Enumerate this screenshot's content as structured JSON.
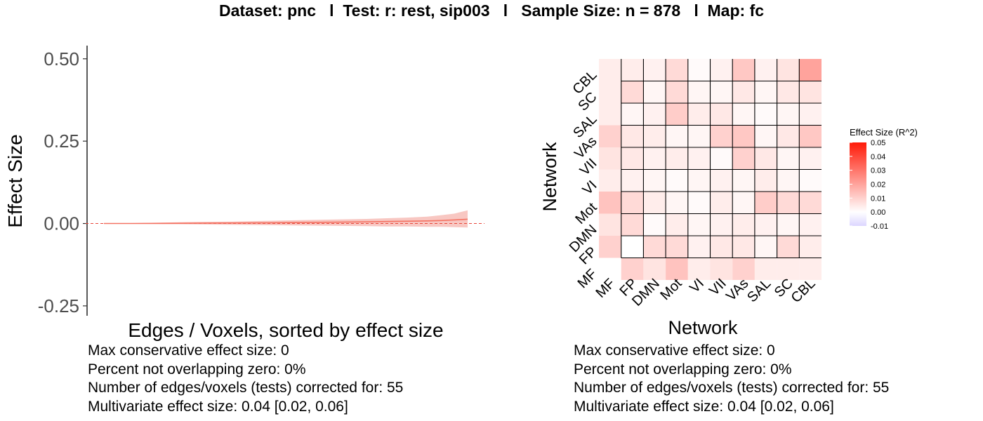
{
  "title": "Dataset: pnc   l  Test: r: rest, sip003   l   Sample Size: n = 878   l  Map: fc",
  "chart_data": [
    {
      "type": "area",
      "xlabel": "Edges / Voxels, sorted by effect size",
      "ylabel": "Effect Size",
      "ylim": [
        -0.28,
        0.54
      ],
      "yticks": [
        0.5,
        0.25,
        0.0,
        -0.25
      ],
      "ytick_labels": [
        "0.50",
        "0.25",
        "0.00",
        "-0.25"
      ],
      "x": [
        1,
        5,
        10,
        15,
        20,
        25,
        30,
        35,
        40,
        43,
        46,
        49,
        51,
        53,
        55
      ],
      "estimate": [
        0.0,
        0.0,
        0.0005,
        0.001,
        0.0015,
        0.002,
        0.003,
        0.004,
        0.005,
        0.006,
        0.007,
        0.008,
        0.009,
        0.011,
        0.013
      ],
      "lower": [
        -0.001,
        -0.001,
        -0.002,
        -0.003,
        -0.004,
        -0.005,
        -0.006,
        -0.007,
        -0.008,
        -0.009,
        -0.009,
        -0.01,
        -0.01,
        -0.011,
        -0.012
      ],
      "upper": [
        0.001,
        0.001,
        0.003,
        0.005,
        0.006,
        0.008,
        0.01,
        0.012,
        0.014,
        0.016,
        0.018,
        0.021,
        0.025,
        0.03,
        0.04
      ],
      "reference_line": 0,
      "colors": {
        "band": "#f8c7c2",
        "line": "#f47262",
        "reference": "#e8463a"
      }
    },
    {
      "type": "heatmap",
      "xlabel": "Network",
      "ylabel": "Network",
      "networks": [
        "MF",
        "FP",
        "DMN",
        "Mot",
        "VI",
        "VII",
        "VAs",
        "SAL",
        "SC",
        "CBL"
      ],
      "values_lower_triangle": [
        [
          0.0
        ],
        [
          0.01,
          0.0
        ],
        [
          0.006,
          0.008,
          0.001
        ],
        [
          0.013,
          0.008,
          0.004,
          0.002
        ],
        [
          0.004,
          0.003,
          0.002,
          0.001,
          0.002
        ],
        [
          0.006,
          0.005,
          0.003,
          0.004,
          0.003,
          0.001
        ],
        [
          0.01,
          0.005,
          0.004,
          0.002,
          0.002,
          0.01,
          0.012
        ],
        [
          0.004,
          0.002,
          0.003,
          0.011,
          0.004,
          0.005,
          0.002,
          0.001
        ],
        [
          0.004,
          0.008,
          0.002,
          0.008,
          0.002,
          0.002,
          0.005,
          0.002,
          0.005
        ],
        [
          0.004,
          0.004,
          0.003,
          0.008,
          0.001,
          0.003,
          0.012,
          0.003,
          0.006,
          0.02
        ]
      ],
      "legend": {
        "title": "Effect Size (R^2)",
        "ticks": [
          "0.05",
          "0.04",
          "0.03",
          "0.02",
          "0.01",
          "0.00",
          "-0.01"
        ],
        "range": [
          -0.01,
          0.05
        ],
        "colors": {
          "low": "#dcd6ff",
          "mid": "#ffffff",
          "high": "#ff1a08"
        }
      }
    }
  ],
  "stats_left": [
    "Max conservative effect size: 0",
    "Percent not overlapping zero: 0%",
    "Number of edges/voxels (tests) corrected for: 55",
    "Multivariate effect size: 0.04 [0.02, 0.06]"
  ],
  "stats_right": [
    "Max conservative effect size: 0",
    "Percent not overlapping zero: 0%",
    "Number of edges/voxels (tests) corrected for: 55",
    "Multivariate effect size: 0.04 [0.02, 0.06]"
  ]
}
